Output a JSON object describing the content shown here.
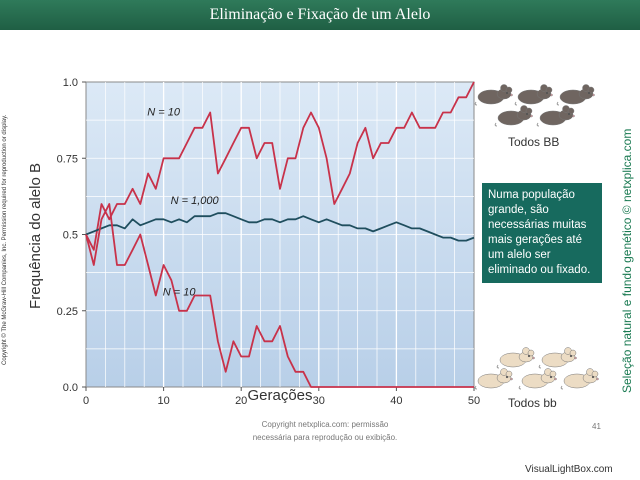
{
  "header": {
    "title": "Eliminação e Fixação de um Alelo"
  },
  "copyright_side": "Copyright © The McGraw-Hill Companies, Inc. Permission required for reproduction or display.",
  "side_credit": "Seleção natural e fundo genético © netxplica.com",
  "callout": {
    "text": "Numa população grande, são necessárias muitas mais gerações até um alelo ser eliminado ou fixado."
  },
  "mice": {
    "top_label": "Todos BB",
    "bottom_label": "Todos bb",
    "top_color": "#6f6560",
    "bottom_color": "#ecdcc4"
  },
  "footer": {
    "copyright_line1": "Copyright netxplica.com: permissão",
    "copyright_line2": "necessária para reprodução ou exibição.",
    "page_number": "41",
    "watermark": "VisualLightBox.com"
  },
  "colors": {
    "plot_bg_top": "#dce9f6",
    "plot_bg_bottom": "#b8cfe8",
    "grid": "#ffffff",
    "small_pop": "#c8324a",
    "large_pop": "#1f4e5e"
  },
  "chart_data": {
    "type": "line",
    "xlabel": "Gerações",
    "ylabel": "Frequência do alelo B",
    "xlim": [
      0,
      50
    ],
    "ylim": [
      0,
      1
    ],
    "xticks": [
      0,
      10,
      20,
      30,
      40,
      50
    ],
    "yticks": [
      0,
      0.25,
      0.5,
      0.75,
      1
    ],
    "ytick_labels": [
      "0.0",
      "0.25",
      "0.5",
      "0.75",
      "1.0"
    ],
    "grid": true,
    "series": [
      {
        "name": "N = 10",
        "role": "small",
        "x": [
          0,
          1,
          2,
          3,
          4,
          5,
          6,
          7,
          8,
          9,
          10,
          11,
          12,
          13,
          14,
          15,
          16,
          17,
          18,
          19,
          20,
          21,
          22,
          23,
          24,
          25,
          26,
          27,
          28,
          29,
          30,
          31,
          32,
          33,
          34,
          35,
          36,
          37,
          38,
          39,
          40,
          41,
          42,
          43,
          44,
          45,
          46,
          47,
          48,
          49,
          50
        ],
        "y": [
          0.5,
          0.45,
          0.6,
          0.55,
          0.6,
          0.6,
          0.65,
          0.6,
          0.7,
          0.65,
          0.75,
          0.75,
          0.75,
          0.8,
          0.85,
          0.85,
          0.9,
          0.7,
          0.75,
          0.8,
          0.85,
          0.85,
          0.75,
          0.8,
          0.8,
          0.65,
          0.75,
          0.75,
          0.85,
          0.9,
          0.85,
          0.75,
          0.6,
          0.65,
          0.7,
          0.8,
          0.85,
          0.75,
          0.8,
          0.8,
          0.85,
          0.85,
          0.9,
          0.85,
          0.85,
          0.85,
          0.9,
          0.9,
          0.95,
          0.95,
          1.0
        ]
      },
      {
        "name": "N = 1,000",
        "role": "large",
        "x": [
          0,
          1,
          2,
          3,
          4,
          5,
          6,
          7,
          8,
          9,
          10,
          11,
          12,
          13,
          14,
          15,
          16,
          17,
          18,
          19,
          20,
          21,
          22,
          23,
          24,
          25,
          26,
          27,
          28,
          29,
          30,
          31,
          32,
          33,
          34,
          35,
          36,
          37,
          38,
          39,
          40,
          41,
          42,
          43,
          44,
          45,
          46,
          47,
          48,
          49,
          50
        ],
        "y": [
          0.5,
          0.51,
          0.52,
          0.53,
          0.53,
          0.52,
          0.55,
          0.53,
          0.54,
          0.55,
          0.55,
          0.54,
          0.55,
          0.54,
          0.56,
          0.56,
          0.56,
          0.57,
          0.57,
          0.56,
          0.55,
          0.54,
          0.54,
          0.55,
          0.55,
          0.54,
          0.55,
          0.55,
          0.56,
          0.55,
          0.54,
          0.55,
          0.54,
          0.53,
          0.53,
          0.52,
          0.52,
          0.51,
          0.52,
          0.53,
          0.54,
          0.53,
          0.52,
          0.52,
          0.51,
          0.5,
          0.49,
          0.49,
          0.48,
          0.48,
          0.49
        ]
      },
      {
        "name": "N = 10",
        "role": "small",
        "x": [
          0,
          1,
          2,
          3,
          4,
          5,
          6,
          7,
          8,
          9,
          10,
          11,
          12,
          13,
          14,
          15,
          16,
          17,
          18,
          19,
          20,
          21,
          22,
          23,
          24,
          25,
          26,
          27,
          28,
          29,
          30,
          31,
          32,
          33,
          34,
          35,
          36,
          37,
          38,
          39,
          40,
          41,
          42,
          43,
          44,
          45,
          46,
          47,
          48,
          49,
          50
        ],
        "y": [
          0.5,
          0.4,
          0.55,
          0.6,
          0.4,
          0.4,
          0.45,
          0.5,
          0.4,
          0.3,
          0.4,
          0.35,
          0.25,
          0.25,
          0.3,
          0.3,
          0.3,
          0.15,
          0.05,
          0.15,
          0.1,
          0.1,
          0.2,
          0.15,
          0.15,
          0.2,
          0.1,
          0.05,
          0.05,
          0,
          0,
          0,
          0,
          0,
          0,
          0,
          0,
          0,
          0,
          0,
          0,
          0,
          0,
          0,
          0,
          0,
          0,
          0,
          0,
          0,
          0
        ]
      }
    ]
  }
}
